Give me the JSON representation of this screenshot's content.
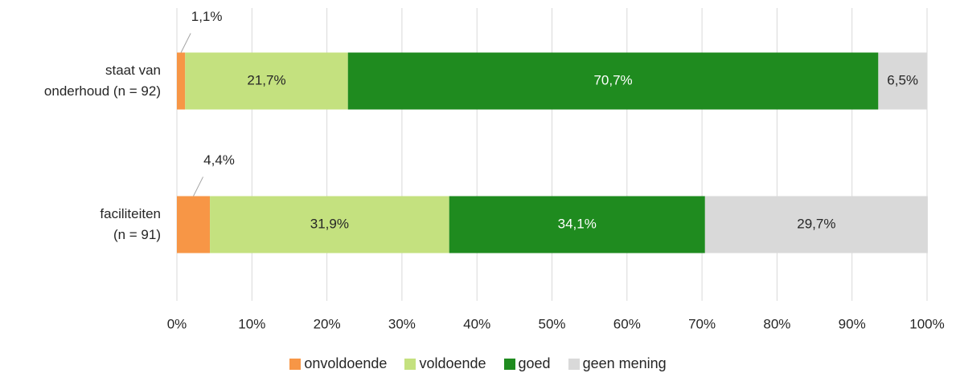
{
  "chart_data": {
    "type": "stacked_bar_horizontal",
    "categories": [
      "staat van\nonderhoud (n = 92)",
      "faciliteiten\n(n = 91)"
    ],
    "series": [
      {
        "name": "onvoldoende",
        "color": "#f79646",
        "values": [
          1.1,
          4.4
        ],
        "value_labels": [
          "1,1%",
          "4,4%"
        ]
      },
      {
        "name": "voldoende",
        "color": "#c4e17f",
        "values": [
          21.7,
          31.9
        ],
        "value_labels": [
          "21,7%",
          "31,9%"
        ]
      },
      {
        "name": "goed",
        "color": "#1f8b1f",
        "values": [
          70.7,
          34.1
        ],
        "value_labels": [
          "70,7%",
          "34,1%"
        ]
      },
      {
        "name": "geen mening",
        "color": "#d9d9d9",
        "values": [
          6.5,
          29.7
        ],
        "value_labels": [
          "6,5%",
          "29,7%"
        ]
      }
    ],
    "xlim": [
      0,
      100
    ],
    "xticks": [
      {
        "value": 0,
        "label": "0%"
      },
      {
        "value": 10,
        "label": "10%"
      },
      {
        "value": 20,
        "label": "20%"
      },
      {
        "value": 30,
        "label": "30%"
      },
      {
        "value": 40,
        "label": "40%"
      },
      {
        "value": 50,
        "label": "50%"
      },
      {
        "value": 60,
        "label": "60%"
      },
      {
        "value": 70,
        "label": "70%"
      },
      {
        "value": 80,
        "label": "80%"
      },
      {
        "value": 90,
        "label": "90%"
      },
      {
        "value": 100,
        "label": "100%"
      }
    ],
    "grid": true,
    "legend": "bottom"
  }
}
